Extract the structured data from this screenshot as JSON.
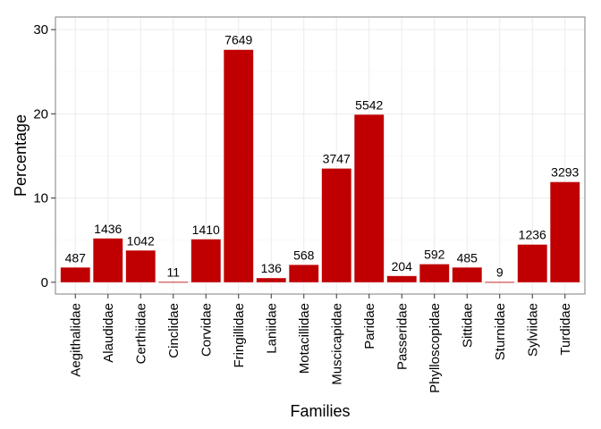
{
  "chart_data": {
    "type": "bar",
    "title": "",
    "xlabel": "Families",
    "ylabel": "Percentage",
    "ylim": [
      -1.4,
      31.5
    ],
    "yticks": [
      0,
      10,
      20,
      30
    ],
    "grid": true,
    "bar_color": "#c00000",
    "categories": [
      "Aegithalidae",
      "Alaudidae",
      "Certhiidae",
      "Cinclidae",
      "Corvidae",
      "Fringillidae",
      "Laniidae",
      "Motacillidae",
      "Muscicapidae",
      "Paridae",
      "Passeridae",
      "Phylloscopidae",
      "Sittidae",
      "Sturnidae",
      "Sylviidae",
      "Turdidae"
    ],
    "values": [
      1.75,
      5.2,
      3.77,
      0.04,
      5.1,
      27.6,
      0.49,
      2.06,
      13.5,
      19.9,
      0.74,
      2.14,
      1.75,
      0.03,
      4.47,
      11.9
    ],
    "labels": [
      "487",
      "1436",
      "1042",
      "11",
      "1410",
      "7649",
      "136",
      "568",
      "3747",
      "5542",
      "204",
      "592",
      "485",
      "9",
      "1236",
      "3293"
    ]
  }
}
